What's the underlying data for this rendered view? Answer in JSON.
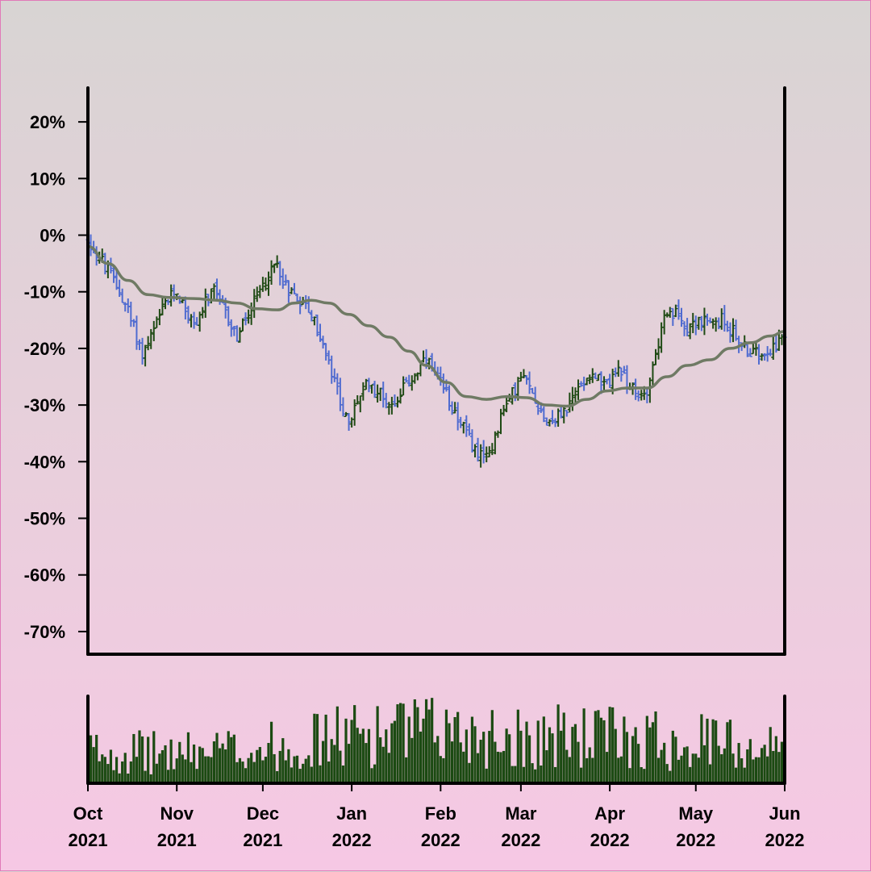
{
  "chart_data": {
    "type": "candlestick",
    "title": "",
    "xlabel": "",
    "ylabel": "",
    "y_unit": "%",
    "ylim": [
      -74,
      26
    ],
    "y_ticks": [
      20,
      10,
      0,
      -10,
      -20,
      -30,
      -40,
      -50,
      -60,
      -70
    ],
    "y_tick_labels": [
      "20%",
      "10%",
      "0%",
      "-10%",
      "-20%",
      "-30%",
      "-40%",
      "-50%",
      "-60%",
      "-70%"
    ],
    "x_range": [
      "2021-10-01",
      "2022-06-01"
    ],
    "x_ticks": [
      {
        "date": "2021-10-01",
        "month": "Oct",
        "year": "2021"
      },
      {
        "date": "2021-11-01",
        "month": "Nov",
        "year": "2021"
      },
      {
        "date": "2021-12-01",
        "month": "Dec",
        "year": "2021"
      },
      {
        "date": "2022-01-01",
        "month": "Jan",
        "year": "2022"
      },
      {
        "date": "2022-02-01",
        "month": "Feb",
        "year": "2022"
      },
      {
        "date": "2022-03-01",
        "month": "Mar",
        "year": "2022"
      },
      {
        "date": "2022-04-01",
        "month": "Apr",
        "year": "2022"
      },
      {
        "date": "2022-05-01",
        "month": "May",
        "year": "2022"
      },
      {
        "date": "2022-06-01",
        "month": "Jun",
        "year": "2022"
      }
    ],
    "price_path": [
      [
        "2021-10-01",
        -1
      ],
      [
        "2021-10-05",
        -4
      ],
      [
        "2021-10-10",
        -8
      ],
      [
        "2021-10-14",
        -12
      ],
      [
        "2021-10-18",
        -18
      ],
      [
        "2021-10-20",
        -21
      ],
      [
        "2021-10-24",
        -17
      ],
      [
        "2021-10-28",
        -12
      ],
      [
        "2021-11-01",
        -10
      ],
      [
        "2021-11-04",
        -13
      ],
      [
        "2021-11-07",
        -16
      ],
      [
        "2021-11-11",
        -12
      ],
      [
        "2021-11-14",
        -10
      ],
      [
        "2021-11-18",
        -14
      ],
      [
        "2021-11-22",
        -18
      ],
      [
        "2021-11-26",
        -14
      ],
      [
        "2021-11-30",
        -10
      ],
      [
        "2021-12-03",
        -7
      ],
      [
        "2021-12-06",
        -5
      ],
      [
        "2021-12-09",
        -9
      ],
      [
        "2021-12-13",
        -11
      ],
      [
        "2021-12-17",
        -13
      ],
      [
        "2021-12-21",
        -18
      ],
      [
        "2021-12-24",
        -23
      ],
      [
        "2021-12-28",
        -29
      ],
      [
        "2021-12-31",
        -34
      ],
      [
        "2022-01-03",
        -29
      ],
      [
        "2022-01-07",
        -26
      ],
      [
        "2022-01-11",
        -28
      ],
      [
        "2022-01-15",
        -30
      ],
      [
        "2022-01-19",
        -27
      ],
      [
        "2022-01-24",
        -24
      ],
      [
        "2022-01-27",
        -22
      ],
      [
        "2022-01-31",
        -26
      ],
      [
        "2022-02-04",
        -29
      ],
      [
        "2022-02-08",
        -33
      ],
      [
        "2022-02-12",
        -37
      ],
      [
        "2022-02-16",
        -40
      ],
      [
        "2022-02-19",
        -37
      ],
      [
        "2022-02-22",
        -32
      ],
      [
        "2022-02-26",
        -28
      ],
      [
        "2022-03-01",
        -25
      ],
      [
        "2022-03-04",
        -27
      ],
      [
        "2022-03-07",
        -30
      ],
      [
        "2022-03-10",
        -33
      ],
      [
        "2022-03-14",
        -32
      ],
      [
        "2022-03-18",
        -30
      ],
      [
        "2022-03-22",
        -26
      ],
      [
        "2022-03-26",
        -24
      ],
      [
        "2022-03-30",
        -27
      ],
      [
        "2022-04-03",
        -24
      ],
      [
        "2022-04-07",
        -26
      ],
      [
        "2022-04-11",
        -29
      ],
      [
        "2022-04-14",
        -27
      ],
      [
        "2022-04-17",
        -21
      ],
      [
        "2022-04-20",
        -15
      ],
      [
        "2022-04-24",
        -14
      ],
      [
        "2022-04-28",
        -16
      ],
      [
        "2022-05-02",
        -15
      ],
      [
        "2022-05-06",
        -16
      ],
      [
        "2022-05-10",
        -15
      ],
      [
        "2022-05-14",
        -17
      ],
      [
        "2022-05-18",
        -20
      ],
      [
        "2022-05-22",
        -21
      ],
      [
        "2022-05-26",
        -20
      ],
      [
        "2022-05-30",
        -19
      ],
      [
        "2022-06-01",
        -18
      ]
    ],
    "moving_average": [
      [
        "2021-10-01",
        -2
      ],
      [
        "2021-10-08",
        -5
      ],
      [
        "2021-10-15",
        -8
      ],
      [
        "2021-10-22",
        -10.5
      ],
      [
        "2021-10-29",
        -11
      ],
      [
        "2021-11-07",
        -11.2
      ],
      [
        "2021-11-15",
        -11.5
      ],
      [
        "2021-11-22",
        -12
      ],
      [
        "2021-11-29",
        -13
      ],
      [
        "2021-12-06",
        -13.2
      ],
      [
        "2021-12-12",
        -12
      ],
      [
        "2021-12-18",
        -11.5
      ],
      [
        "2021-12-24",
        -12
      ],
      [
        "2021-12-31",
        -14
      ],
      [
        "2022-01-07",
        -16
      ],
      [
        "2022-01-14",
        -18
      ],
      [
        "2022-01-21",
        -20.5
      ],
      [
        "2022-01-27",
        -23
      ],
      [
        "2022-02-03",
        -26
      ],
      [
        "2022-02-10",
        -28.5
      ],
      [
        "2022-02-17",
        -29
      ],
      [
        "2022-02-24",
        -28.5
      ],
      [
        "2022-03-03",
        -28.7
      ],
      [
        "2022-03-10",
        -30
      ],
      [
        "2022-03-17",
        -30.2
      ],
      [
        "2022-03-24",
        -29
      ],
      [
        "2022-03-31",
        -27.5
      ],
      [
        "2022-04-07",
        -27
      ],
      [
        "2022-04-14",
        -27
      ],
      [
        "2022-04-21",
        -25
      ],
      [
        "2022-04-28",
        -23
      ],
      [
        "2022-05-06",
        -22
      ],
      [
        "2022-05-13",
        -20
      ],
      [
        "2022-05-20",
        -19
      ],
      [
        "2022-05-27",
        -17.8
      ],
      [
        "2022-06-01",
        -17
      ]
    ],
    "volume_range": [
      0,
      1
    ],
    "volume_profile": [
      [
        "2021-10-01",
        0.42
      ],
      [
        "2021-11-01",
        0.38
      ],
      [
        "2021-12-01",
        0.45
      ],
      [
        "2022-01-01",
        0.62
      ],
      [
        "2022-02-01",
        0.68
      ],
      [
        "2022-03-01",
        0.6
      ],
      [
        "2022-04-01",
        0.6
      ],
      [
        "2022-05-01",
        0.55
      ],
      [
        "2022-06-01",
        0.45
      ]
    ],
    "colors": {
      "up": "#1f4a14",
      "down": "#4f6bd0",
      "moving_average": "#6f7a64",
      "volume": "#1b4a12",
      "axes": "#000000"
    },
    "grid": false,
    "legend": "none"
  }
}
